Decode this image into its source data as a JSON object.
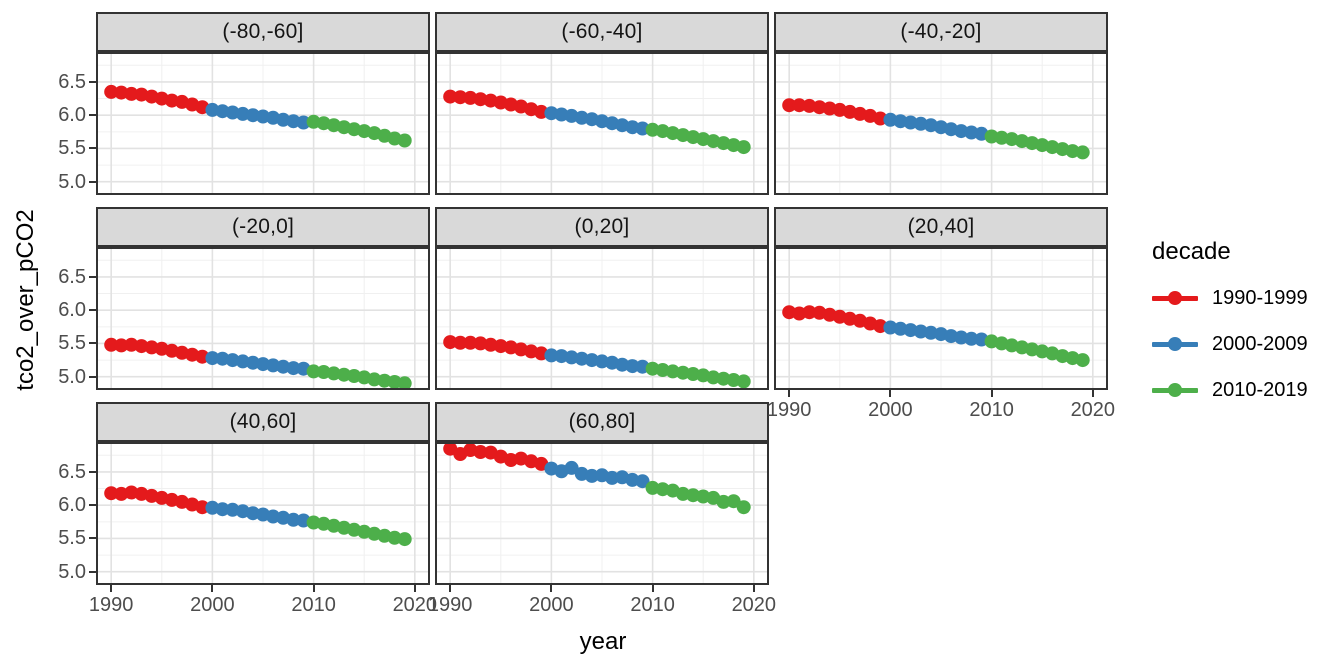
{
  "chart_data": {
    "type": "scatter",
    "title": "",
    "xlabel": "year",
    "ylabel": "tco2_over_pCO2",
    "grid": true,
    "legend": {
      "title": "decade",
      "position": "right",
      "entries": [
        {
          "label": "1990-1999",
          "color": "#E41A1C"
        },
        {
          "label": "2000-2009",
          "color": "#377EB8"
        },
        {
          "label": "2010-2019",
          "color": "#4DAF4A"
        }
      ]
    },
    "xlim": [
      1988.5,
      2021.5
    ],
    "ylim": [
      4.8,
      6.95
    ],
    "x_ticks": [
      1990,
      2000,
      2010,
      2020
    ],
    "x_tick_labels": [
      "1990",
      "2000",
      "2010",
      "2020"
    ],
    "x_minor": [
      1995,
      2005,
      2015
    ],
    "y_ticks": [
      6.5,
      6.0,
      5.5,
      5.0
    ],
    "y_tick_labels": [
      "6.5",
      "6.0",
      "5.5",
      "5.0"
    ],
    "y_minor": [
      6.75,
      6.25,
      5.75,
      5.25
    ],
    "x": [
      1990,
      1991,
      1992,
      1993,
      1994,
      1995,
      1996,
      1997,
      1998,
      1999,
      2000,
      2001,
      2002,
      2003,
      2004,
      2005,
      2006,
      2007,
      2008,
      2009,
      2010,
      2011,
      2012,
      2013,
      2014,
      2015,
      2016,
      2017,
      2018,
      2019
    ],
    "panels": [
      {
        "facet": "(-80,-60]",
        "series": [
          {
            "name": "1990-1999",
            "values": [
              6.35,
              6.34,
              6.32,
              6.31,
              6.28,
              6.25,
              6.22,
              6.2,
              6.16,
              6.12
            ]
          },
          {
            "name": "2000-2009",
            "values": [
              6.08,
              6.06,
              6.04,
              6.02,
              6.0,
              5.98,
              5.96,
              5.93,
              5.91,
              5.89
            ]
          },
          {
            "name": "2010-2019",
            "values": [
              5.9,
              5.88,
              5.85,
              5.82,
              5.79,
              5.76,
              5.73,
              5.69,
              5.65,
              5.62
            ]
          }
        ]
      },
      {
        "facet": "(-60,-40]",
        "series": [
          {
            "name": "1990-1999",
            "values": [
              6.28,
              6.27,
              6.26,
              6.24,
              6.22,
              6.19,
              6.16,
              6.13,
              6.09,
              6.05
            ]
          },
          {
            "name": "2000-2009",
            "values": [
              6.03,
              6.01,
              5.99,
              5.96,
              5.94,
              5.91,
              5.88,
              5.85,
              5.82,
              5.8
            ]
          },
          {
            "name": "2010-2019",
            "values": [
              5.78,
              5.76,
              5.73,
              5.7,
              5.67,
              5.64,
              5.61,
              5.58,
              5.55,
              5.52
            ]
          }
        ]
      },
      {
        "facet": "(-40,-20]",
        "series": [
          {
            "name": "1990-1999",
            "values": [
              6.15,
              6.15,
              6.14,
              6.12,
              6.1,
              6.08,
              6.05,
              6.02,
              5.99,
              5.95
            ]
          },
          {
            "name": "2000-2009",
            "values": [
              5.93,
              5.91,
              5.89,
              5.87,
              5.85,
              5.82,
              5.79,
              5.76,
              5.74,
              5.72
            ]
          },
          {
            "name": "2010-2019",
            "values": [
              5.68,
              5.66,
              5.64,
              5.61,
              5.58,
              5.55,
              5.52,
              5.49,
              5.46,
              5.44
            ]
          }
        ]
      },
      {
        "facet": "(-20,0]",
        "series": [
          {
            "name": "1990-1999",
            "values": [
              5.48,
              5.47,
              5.48,
              5.46,
              5.44,
              5.42,
              5.39,
              5.36,
              5.33,
              5.3
            ]
          },
          {
            "name": "2000-2009",
            "values": [
              5.28,
              5.27,
              5.25,
              5.23,
              5.21,
              5.19,
              5.17,
              5.15,
              5.13,
              5.12
            ]
          },
          {
            "name": "2010-2019",
            "values": [
              5.08,
              5.07,
              5.05,
              5.03,
              5.01,
              4.99,
              4.96,
              4.94,
              4.92,
              4.9
            ]
          }
        ]
      },
      {
        "facet": "(0,20]",
        "series": [
          {
            "name": "1990-1999",
            "values": [
              5.52,
              5.51,
              5.51,
              5.5,
              5.48,
              5.46,
              5.44,
              5.41,
              5.38,
              5.35
            ]
          },
          {
            "name": "2000-2009",
            "values": [
              5.32,
              5.31,
              5.29,
              5.27,
              5.25,
              5.23,
              5.21,
              5.18,
              5.16,
              5.15
            ]
          },
          {
            "name": "2010-2019",
            "values": [
              5.12,
              5.1,
              5.08,
              5.06,
              5.04,
              5.02,
              4.99,
              4.97,
              4.95,
              4.93
            ]
          }
        ]
      },
      {
        "facet": "(20,40]",
        "series": [
          {
            "name": "1990-1999",
            "values": [
              5.97,
              5.95,
              5.97,
              5.96,
              5.93,
              5.9,
              5.87,
              5.84,
              5.8,
              5.76
            ]
          },
          {
            "name": "2000-2009",
            "values": [
              5.74,
              5.72,
              5.7,
              5.68,
              5.66,
              5.64,
              5.61,
              5.59,
              5.57,
              5.56
            ]
          },
          {
            "name": "2010-2019",
            "values": [
              5.53,
              5.5,
              5.47,
              5.44,
              5.41,
              5.38,
              5.35,
              5.31,
              5.28,
              5.25
            ]
          }
        ]
      },
      {
        "facet": "(40,60]",
        "series": [
          {
            "name": "1990-1999",
            "values": [
              6.18,
              6.17,
              6.19,
              6.17,
              6.14,
              6.11,
              6.08,
              6.05,
              6.01,
              5.97
            ]
          },
          {
            "name": "2000-2009",
            "values": [
              5.96,
              5.94,
              5.93,
              5.91,
              5.88,
              5.86,
              5.83,
              5.81,
              5.78,
              5.77
            ]
          },
          {
            "name": "2010-2019",
            "values": [
              5.74,
              5.72,
              5.69,
              5.66,
              5.63,
              5.6,
              5.57,
              5.54,
              5.51,
              5.49
            ]
          }
        ]
      },
      {
        "facet": "(60,80]",
        "series": [
          {
            "name": "1990-1999",
            "values": [
              6.85,
              6.77,
              6.83,
              6.8,
              6.79,
              6.73,
              6.68,
              6.7,
              6.66,
              6.62
            ]
          },
          {
            "name": "2000-2009",
            "values": [
              6.55,
              6.51,
              6.56,
              6.47,
              6.44,
              6.45,
              6.41,
              6.42,
              6.38,
              6.36
            ]
          },
          {
            "name": "2010-2019",
            "values": [
              6.26,
              6.24,
              6.22,
              6.17,
              6.15,
              6.13,
              6.11,
              6.05,
              6.06,
              5.97
            ]
          }
        ]
      }
    ]
  }
}
